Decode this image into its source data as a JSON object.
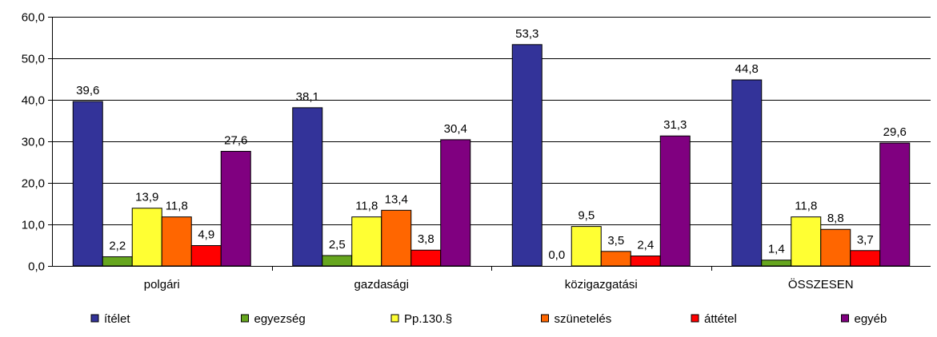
{
  "chart_data": {
    "type": "bar",
    "title": "",
    "xlabel": "",
    "ylabel": "",
    "ylim": [
      0,
      60
    ],
    "yticks": [
      "0,0",
      "10,0",
      "20,0",
      "30,0",
      "40,0",
      "50,0",
      "60,0"
    ],
    "grid": true,
    "legend_position": "bottom",
    "categories": [
      "polgári",
      "gazdasági",
      "közigazgatási",
      "ÖSSZESEN"
    ],
    "series": [
      {
        "name": "ítélet",
        "color": "#333399",
        "values": [
          39.6,
          38.1,
          53.3,
          44.8
        ],
        "labels": [
          "39,6",
          "38,1",
          "53,3",
          "44,8"
        ]
      },
      {
        "name": "egyezség",
        "color": "#66A61E",
        "values": [
          2.2,
          2.5,
          0.0,
          1.4
        ],
        "labels": [
          "2,2",
          "2,5",
          "0,0",
          "1,4"
        ]
      },
      {
        "name": "Pp.130.§",
        "color": "#FFFF33",
        "values": [
          13.9,
          11.8,
          9.5,
          11.8
        ],
        "labels": [
          "13,9",
          "11,8",
          "9,5",
          "11,8"
        ]
      },
      {
        "name": "szünetelés",
        "color": "#FF6600",
        "values": [
          11.8,
          13.4,
          3.5,
          8.8
        ],
        "labels": [
          "11,8",
          "13,4",
          "3,5",
          "8,8"
        ]
      },
      {
        "name": "áttétel",
        "color": "#FF0000",
        "values": [
          4.9,
          3.8,
          2.4,
          3.7
        ],
        "labels": [
          "4,9",
          "3,8",
          "2,4",
          "3,7"
        ]
      },
      {
        "name": "egyéb",
        "color": "#800080",
        "values": [
          27.6,
          30.4,
          31.3,
          29.6
        ],
        "labels": [
          "27,6",
          "30,4",
          "31,3",
          "29,6"
        ]
      }
    ]
  }
}
